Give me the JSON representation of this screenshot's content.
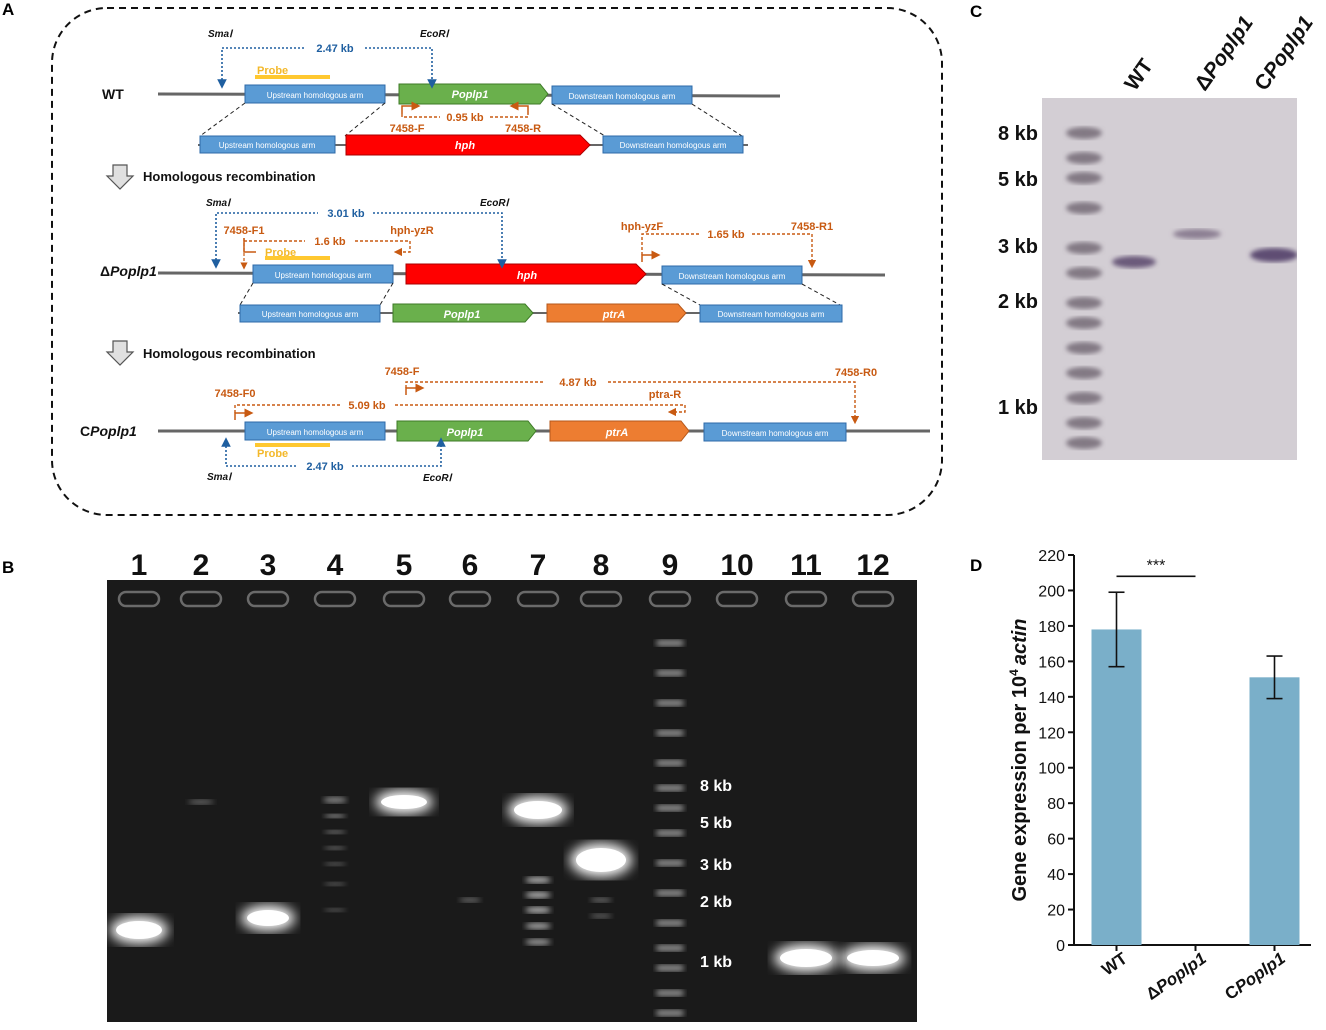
{
  "panels": {
    "a": "A",
    "b": "B",
    "c": "C",
    "d": "D"
  },
  "panel_a": {
    "row_labels": {
      "wt": "WT",
      "delta_prefix": "Δ",
      "delta_gene": "Poplp1",
      "comp_prefix": "C",
      "comp_gene": "Poplp1"
    },
    "enzymes": {
      "sma": "SmaⅠ",
      "eco": "EcoRⅠ"
    },
    "blocks": {
      "upstream": "Upstream homologous arm",
      "downstream": "Downstream homologous arm",
      "gene": "Poplp1",
      "hph": "hph",
      "ptra": "ptrA"
    },
    "probe": "Probe",
    "step_label": "Homologous recombination",
    "sizes": {
      "wt_blue": "2.47 kb",
      "wt_primer": "0.95 kb",
      "del_blue": "3.01 kb",
      "del_left": "1.6 kb",
      "del_right": "1.65 kb",
      "comp_top": "4.87 kb",
      "comp_mid": "5.09 kb",
      "comp_blue": "2.47 kb"
    },
    "primers": {
      "f": "7458-F",
      "r": "7458-R",
      "f1": "7458-F1",
      "yzr": "hph-yzR",
      "yzf": "hph-yzF",
      "r1": "7458-R1",
      "f0": "7458-F0",
      "r0": "7458-R0",
      "ptrar": "ptra-R"
    }
  },
  "panel_b": {
    "lanes": [
      "1",
      "2",
      "3",
      "4",
      "5",
      "6",
      "7",
      "8",
      "9",
      "10",
      "11",
      "12"
    ],
    "markers": [
      "8 kb",
      "5 kb",
      "3 kb",
      "2 kb",
      "1 kb"
    ]
  },
  "panel_c": {
    "lanes": [
      {
        "prefix": "",
        "gene": "WT"
      },
      {
        "prefix": "Δ",
        "gene": "Poplp1"
      },
      {
        "prefix": "C",
        "gene": "Poplp1"
      }
    ],
    "markers": [
      "8 kb",
      "5 kb",
      "3 kb",
      "2 kb",
      "1 kb"
    ]
  },
  "chart_data": {
    "type": "bar",
    "categories": [
      "WT",
      "ΔPoplp1",
      "CPoplp1"
    ],
    "category_parts": [
      [
        "",
        "WT"
      ],
      [
        "Δ",
        "Poplp1"
      ],
      [
        "C",
        "Poplp1"
      ]
    ],
    "values": [
      178,
      0,
      151
    ],
    "errors": [
      21,
      0,
      12
    ],
    "ylabel": "Gene expression per 10",
    "ylabel_sup": "4",
    "ylabel_end": "actin",
    "ylim": [
      0,
      220
    ],
    "yticks": [
      0,
      20,
      40,
      60,
      80,
      100,
      120,
      140,
      160,
      180,
      200,
      220
    ],
    "significance": "***",
    "bar_color": "#7aafc9"
  }
}
